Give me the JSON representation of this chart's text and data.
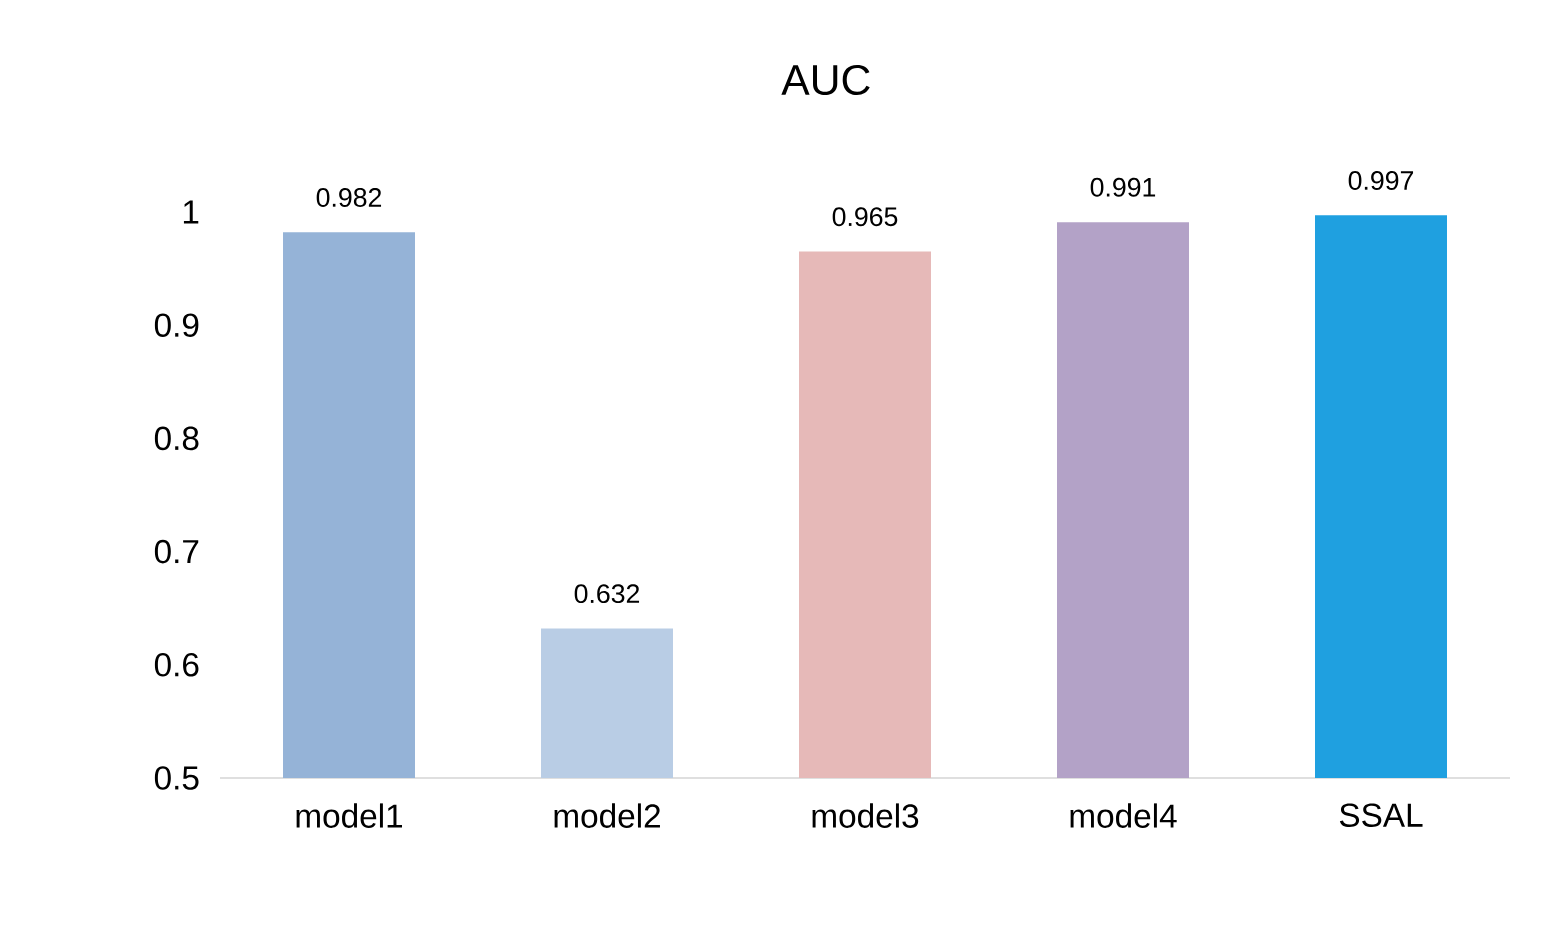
{
  "chart_data": {
    "type": "bar",
    "title": "AUC",
    "categories": [
      "model1",
      "model2",
      "model3",
      "model4",
      "SSAL"
    ],
    "values": [
      0.982,
      0.632,
      0.965,
      0.991,
      0.997
    ],
    "colors": [
      "#95b3d7",
      "#b9cde5",
      "#e6b9b8",
      "#b3a2c7",
      "#1fa0e0"
    ],
    "ylim": [
      0.5,
      1
    ],
    "yticks": [
      0.5,
      0.6,
      0.7,
      0.8,
      0.9,
      1
    ],
    "data_labels": true
  }
}
